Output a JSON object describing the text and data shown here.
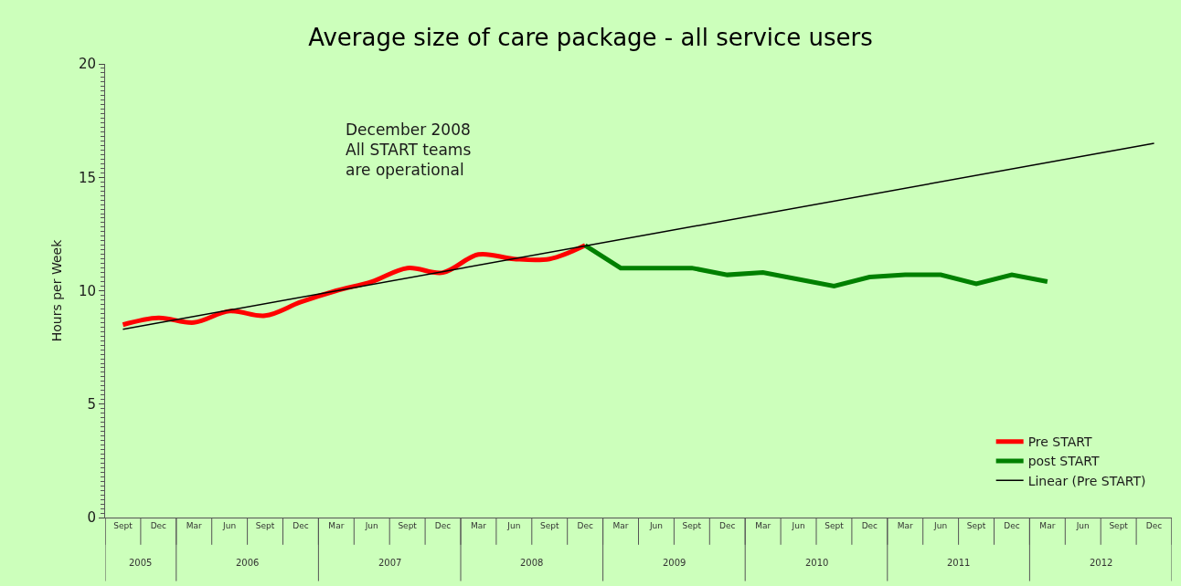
{
  "chart_data": {
    "type": "line",
    "title": "Average size of care package - all service users",
    "ylabel": "Hours per Week",
    "categories": [
      "Sept",
      "Dec",
      "Mar",
      "Jun",
      "Sept",
      "Dec",
      "Mar",
      "Jun",
      "Sept",
      "Dec",
      "Mar",
      "Jun",
      "Sept",
      "Dec",
      "Mar",
      "Jun",
      "Sept",
      "Dec",
      "Mar",
      "Jun",
      "Sept",
      "Dec",
      "Mar",
      "Jun",
      "Sept",
      "Dec",
      "Mar",
      "Jun",
      "Sept",
      "Dec"
    ],
    "series": [
      {
        "name": "Pre START",
        "color": "#ff0000",
        "values": [
          8.5,
          8.8,
          8.6,
          9.1,
          8.9,
          9.5,
          10.0,
          10.4,
          11.0,
          10.8,
          11.6,
          11.4,
          11.4,
          12.0,
          null,
          null,
          null,
          null,
          null,
          null,
          null,
          null,
          null,
          null,
          null,
          null,
          null,
          null,
          null,
          null
        ]
      },
      {
        "name": "post START",
        "color": "#008000",
        "values": [
          null,
          null,
          null,
          null,
          null,
          null,
          null,
          null,
          null,
          null,
          null,
          null,
          null,
          12.0,
          11.0,
          11.0,
          11.0,
          10.7,
          10.8,
          10.5,
          10.2,
          10.6,
          10.7,
          10.7,
          10.3,
          10.7,
          10.4,
          null,
          null,
          null
        ]
      },
      {
        "name": "Linear (Pre START)",
        "color": "#000000",
        "values": [
          8.3,
          null,
          null,
          null,
          null,
          null,
          null,
          null,
          null,
          null,
          null,
          null,
          null,
          null,
          null,
          null,
          null,
          null,
          null,
          null,
          null,
          null,
          null,
          null,
          null,
          null,
          null,
          null,
          null,
          16.5
        ]
      }
    ],
    "annotations": [
      "December 2008\nAll START teams\nare operational",
      "2005",
      "2006",
      "2007",
      "2008",
      "2009",
      "2010",
      "2011",
      "2012"
    ],
    "ylim": [
      0,
      20
    ],
    "yticks": [
      0,
      5,
      10,
      15,
      20
    ],
    "grid": false,
    "legend": "bottom right"
  }
}
